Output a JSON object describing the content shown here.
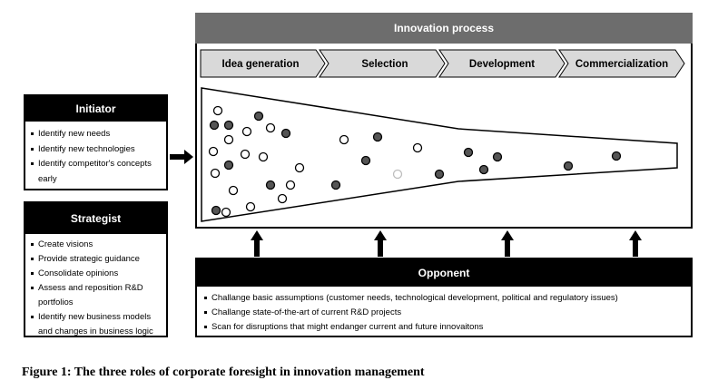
{
  "process": {
    "title": "Innovation process",
    "stages": [
      "Idea generation",
      "Selection",
      "Development",
      "Commercialization"
    ]
  },
  "initiator": {
    "title": "Initiator",
    "items": [
      "Identify new needs",
      "Identify new technologies",
      "Identify competitor's concepts early"
    ]
  },
  "strategist": {
    "title": "Strategist",
    "items": [
      "Create visions",
      "Provide strategic guidance",
      "Consolidate opinions",
      "Assess and reposition R&D portfolios",
      "Identify new business models and changes in business logic"
    ]
  },
  "opponent": {
    "title": "Opponent",
    "items": [
      "Challange basic assumptions (customer needs, technological development, political and regulatory issues)",
      "Challange state-of-the-art of current R&D projects",
      "Scan for disruptions that might endanger current and future innovaitons"
    ]
  },
  "caption": "Figure 1: The three roles of corporate foresight in innovation management",
  "colors": {
    "header_gray": "#6d6d6d",
    "stage_gray": "#d9d9d9",
    "dot_dark": "#555555",
    "dot_light": "#cccccc"
  }
}
